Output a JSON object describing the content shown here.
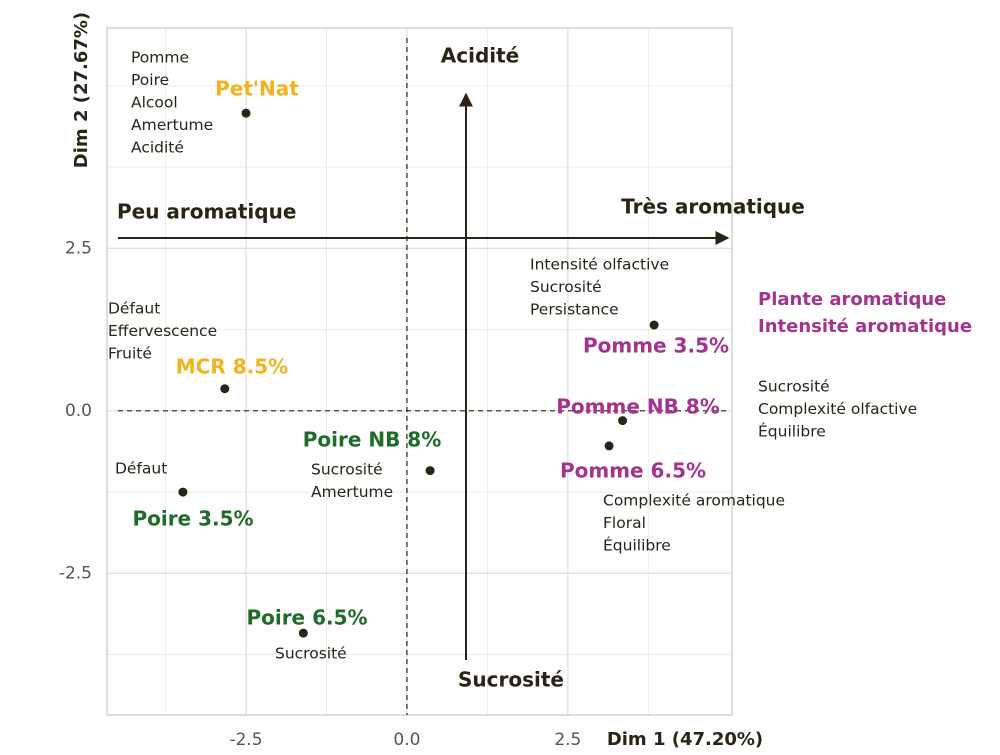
{
  "chart_data": {
    "type": "scatter",
    "xlabel": "Dim 1 (47.20%)",
    "ylabel": "Dim 2 (27.67%)",
    "xlim": [
      -4.66,
      5.05
    ],
    "ylim": [
      -4.68,
      5.89
    ],
    "xticks": [
      {
        "value": -2.5,
        "label": "-2.5"
      },
      {
        "value": 0,
        "label": "0.0"
      },
      {
        "value": 2.5,
        "label": "2.5"
      }
    ],
    "yticks": [
      {
        "value": -2.5,
        "label": "-2.5"
      },
      {
        "value": 0,
        "label": "0.0"
      },
      {
        "value": 2.5,
        "label": "2.5"
      }
    ],
    "xminor": [
      -3.75,
      -1.25,
      1.25,
      3.75
    ],
    "yminor": [
      -3.75,
      -1.25,
      1.25,
      3.75,
      5
    ],
    "grid": true,
    "series": [
      {
        "name": "Pet'Nat",
        "color": "#f2b31d",
        "x": [
          -2.5
        ],
        "y": [
          4.58
        ]
      },
      {
        "name": "MCR 8.5%",
        "color": "#f2b31d",
        "x": [
          -2.83
        ],
        "y": [
          0.34
        ]
      },
      {
        "name": "Poire 3.5%",
        "color": "#1e6b2a",
        "x": [
          -3.48
        ],
        "y": [
          -1.25
        ]
      },
      {
        "name": "Poire 6.5%",
        "color": "#1e6b2a",
        "x": [
          -1.61
        ],
        "y": [
          -3.42
        ]
      },
      {
        "name": "Poire NB 8%",
        "color": "#1e6b2a",
        "x": [
          0.36
        ],
        "y": [
          -0.92
        ]
      },
      {
        "name": "Pomme 3.5%",
        "color": "#a4338f",
        "x": [
          3.84
        ],
        "y": [
          1.32
        ]
      },
      {
        "name": "Pomme NB 8%",
        "color": "#a4338f",
        "x": [
          3.35
        ],
        "y": [
          -0.15
        ]
      },
      {
        "name": "Pomme 6.5%",
        "color": "#a4338f",
        "x": [
          3.14
        ],
        "y": [
          -0.54
        ]
      }
    ],
    "direction_labels": [
      "Acidité",
      "Sucrosité",
      "Peu aromatique",
      "Très aromatique"
    ],
    "annotations": [
      {
        "lines": [
          "Pomme",
          "Poire",
          "Alcool",
          "Amertume",
          "Acidité"
        ],
        "color": "#2a2418"
      },
      {
        "lines": [
          "Intensité olfactive",
          "Sucrosité",
          "Persistance"
        ],
        "color": "#2a2418"
      },
      {
        "lines": [
          "Plante aromatique",
          "Intensité aromatique"
        ],
        "color": "#a4338f"
      },
      {
        "lines": [
          "Défaut",
          "Effervescence",
          "Fruité"
        ],
        "color": "#2a2418"
      },
      {
        "lines": [
          "Sucrosité",
          "Complexité olfactive",
          "Équilibre"
        ],
        "color": "#2a2418"
      },
      {
        "lines": [
          "Défaut"
        ],
        "color": "#2a2418"
      },
      {
        "lines": [
          "Sucrosité",
          "Amertume"
        ],
        "color": "#2a2418"
      },
      {
        "lines": [
          "Complexité aromatique",
          "Floral",
          "Équilibre"
        ],
        "color": "#2a2418"
      },
      {
        "lines": [
          "Sucrosité"
        ],
        "color": "#2a2418"
      }
    ]
  }
}
